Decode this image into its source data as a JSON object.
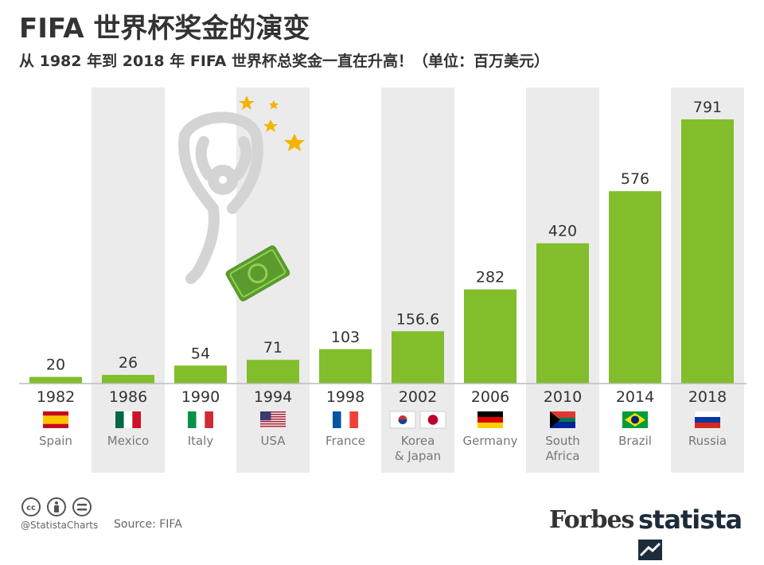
{
  "title": "FIFA 世界杯奖金的演变",
  "subtitle": "从 1982 年到 2018 年 FIFA 世界杯总奖金一直在升高！（单位：百万美元）",
  "footer": {
    "handle": "@StatistaCharts",
    "source": "Source: FIFA"
  },
  "brands": {
    "forbes": "Forbes",
    "statista": "statista"
  },
  "icons": [
    "cc-icon",
    "person-icon",
    "equals-icon",
    "trophy-icon",
    "star-icon",
    "money-icon",
    "statista-logo-icon"
  ],
  "colors": {
    "bar": "#82bd2b",
    "band": "#ebebeb",
    "text": "#333333",
    "star": "#f4b400"
  },
  "chart_data": {
    "type": "bar",
    "categories": [
      "1982",
      "1986",
      "1990",
      "1994",
      "1998",
      "2002",
      "2006",
      "2010",
      "2014",
      "2018"
    ],
    "values": [
      20,
      26,
      54,
      71,
      103,
      156.6,
      282,
      420,
      576,
      791
    ],
    "value_labels": [
      "20",
      "26",
      "54",
      "71",
      "103",
      "156.6",
      "282",
      "420",
      "576",
      "791"
    ],
    "countries": [
      [
        "Spain"
      ],
      [
        "Mexico"
      ],
      [
        "Italy"
      ],
      [
        "USA"
      ],
      [
        "France"
      ],
      [
        "Korea",
        "& Japan"
      ],
      [
        "Germany"
      ],
      [
        "South",
        "Africa"
      ],
      [
        "Brazil"
      ],
      [
        "Russia"
      ]
    ],
    "flags": [
      [
        "es"
      ],
      [
        "mx"
      ],
      [
        "it"
      ],
      [
        "us"
      ],
      [
        "fr"
      ],
      [
        "kr",
        "jp"
      ],
      [
        "de"
      ],
      [
        "za"
      ],
      [
        "br"
      ],
      [
        "ru"
      ]
    ],
    "ylim": [
      0,
      791
    ],
    "grid": false
  }
}
